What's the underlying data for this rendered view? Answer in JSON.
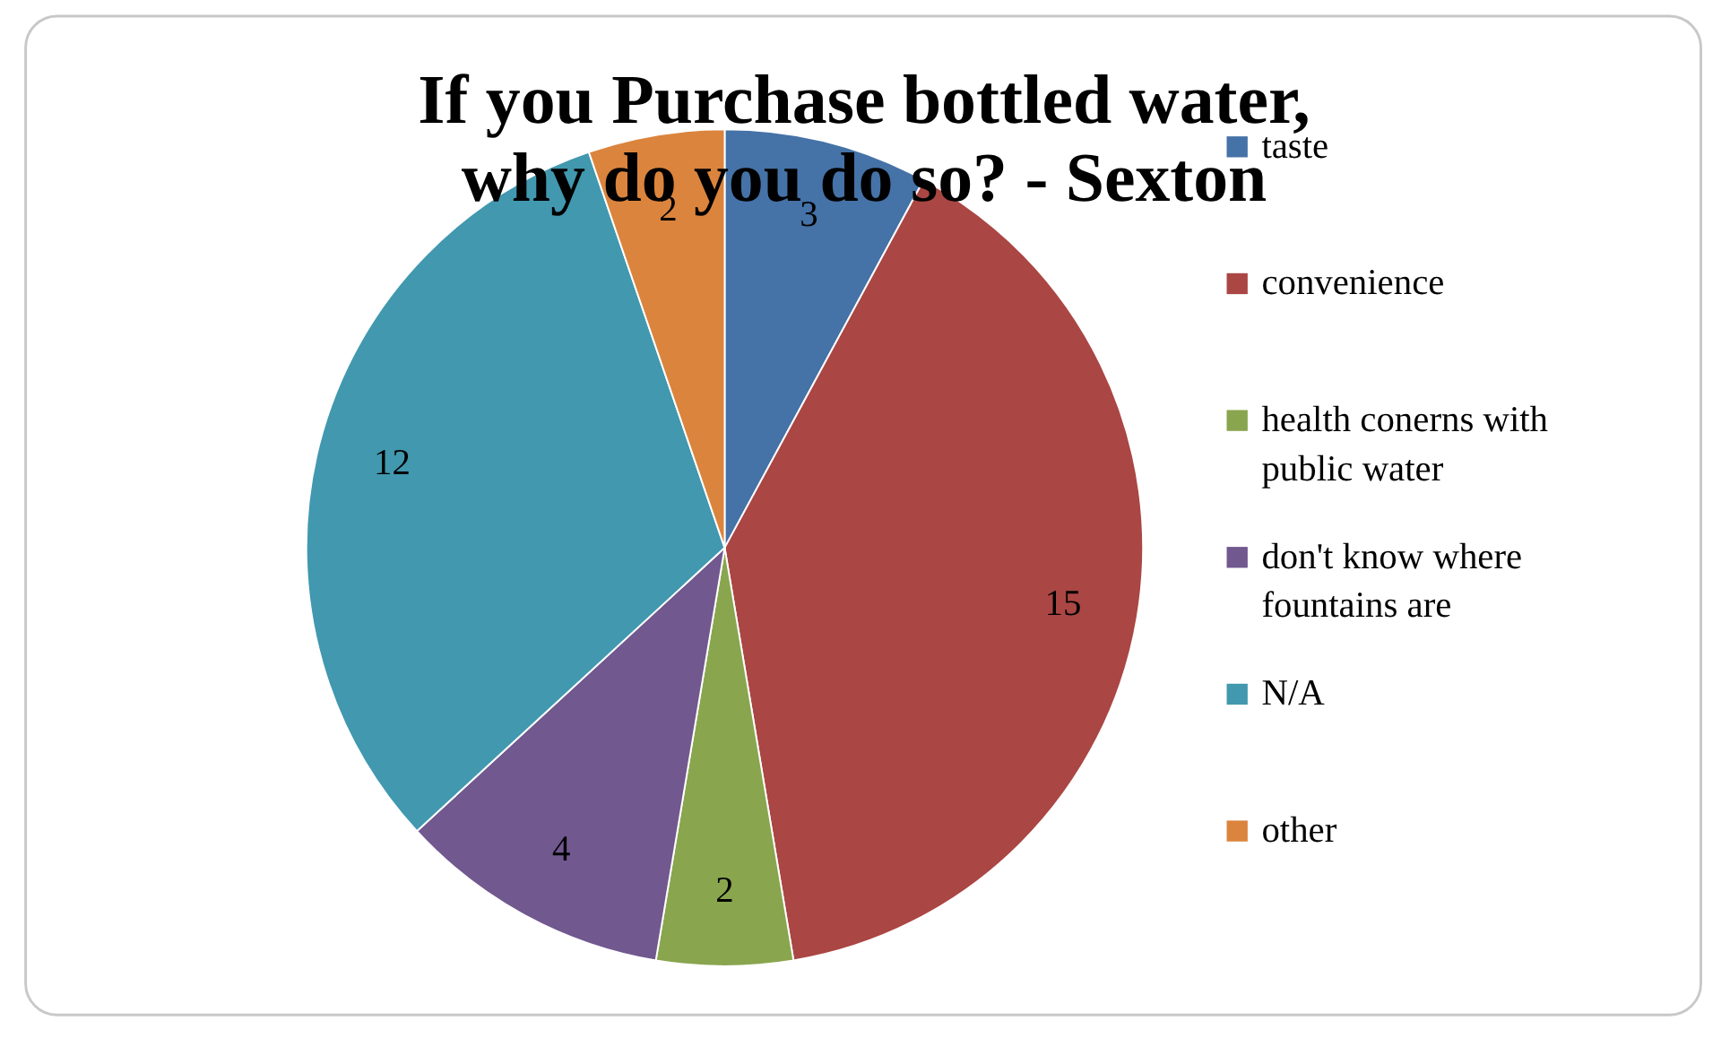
{
  "chart_data": {
    "type": "pie",
    "title": "If you Purchase bottled water, why do you do so? - Sexton",
    "categories": [
      "taste",
      "convenience",
      "health conerns with public water",
      "don't know where fountains are",
      "N/A",
      "other"
    ],
    "values": [
      3,
      15,
      2,
      4,
      12,
      2
    ],
    "colors": [
      "#4572a7",
      "#aa4643",
      "#89a54e",
      "#71588f",
      "#4198af",
      "#db843d"
    ],
    "data_labels": true,
    "legend": "right"
  }
}
